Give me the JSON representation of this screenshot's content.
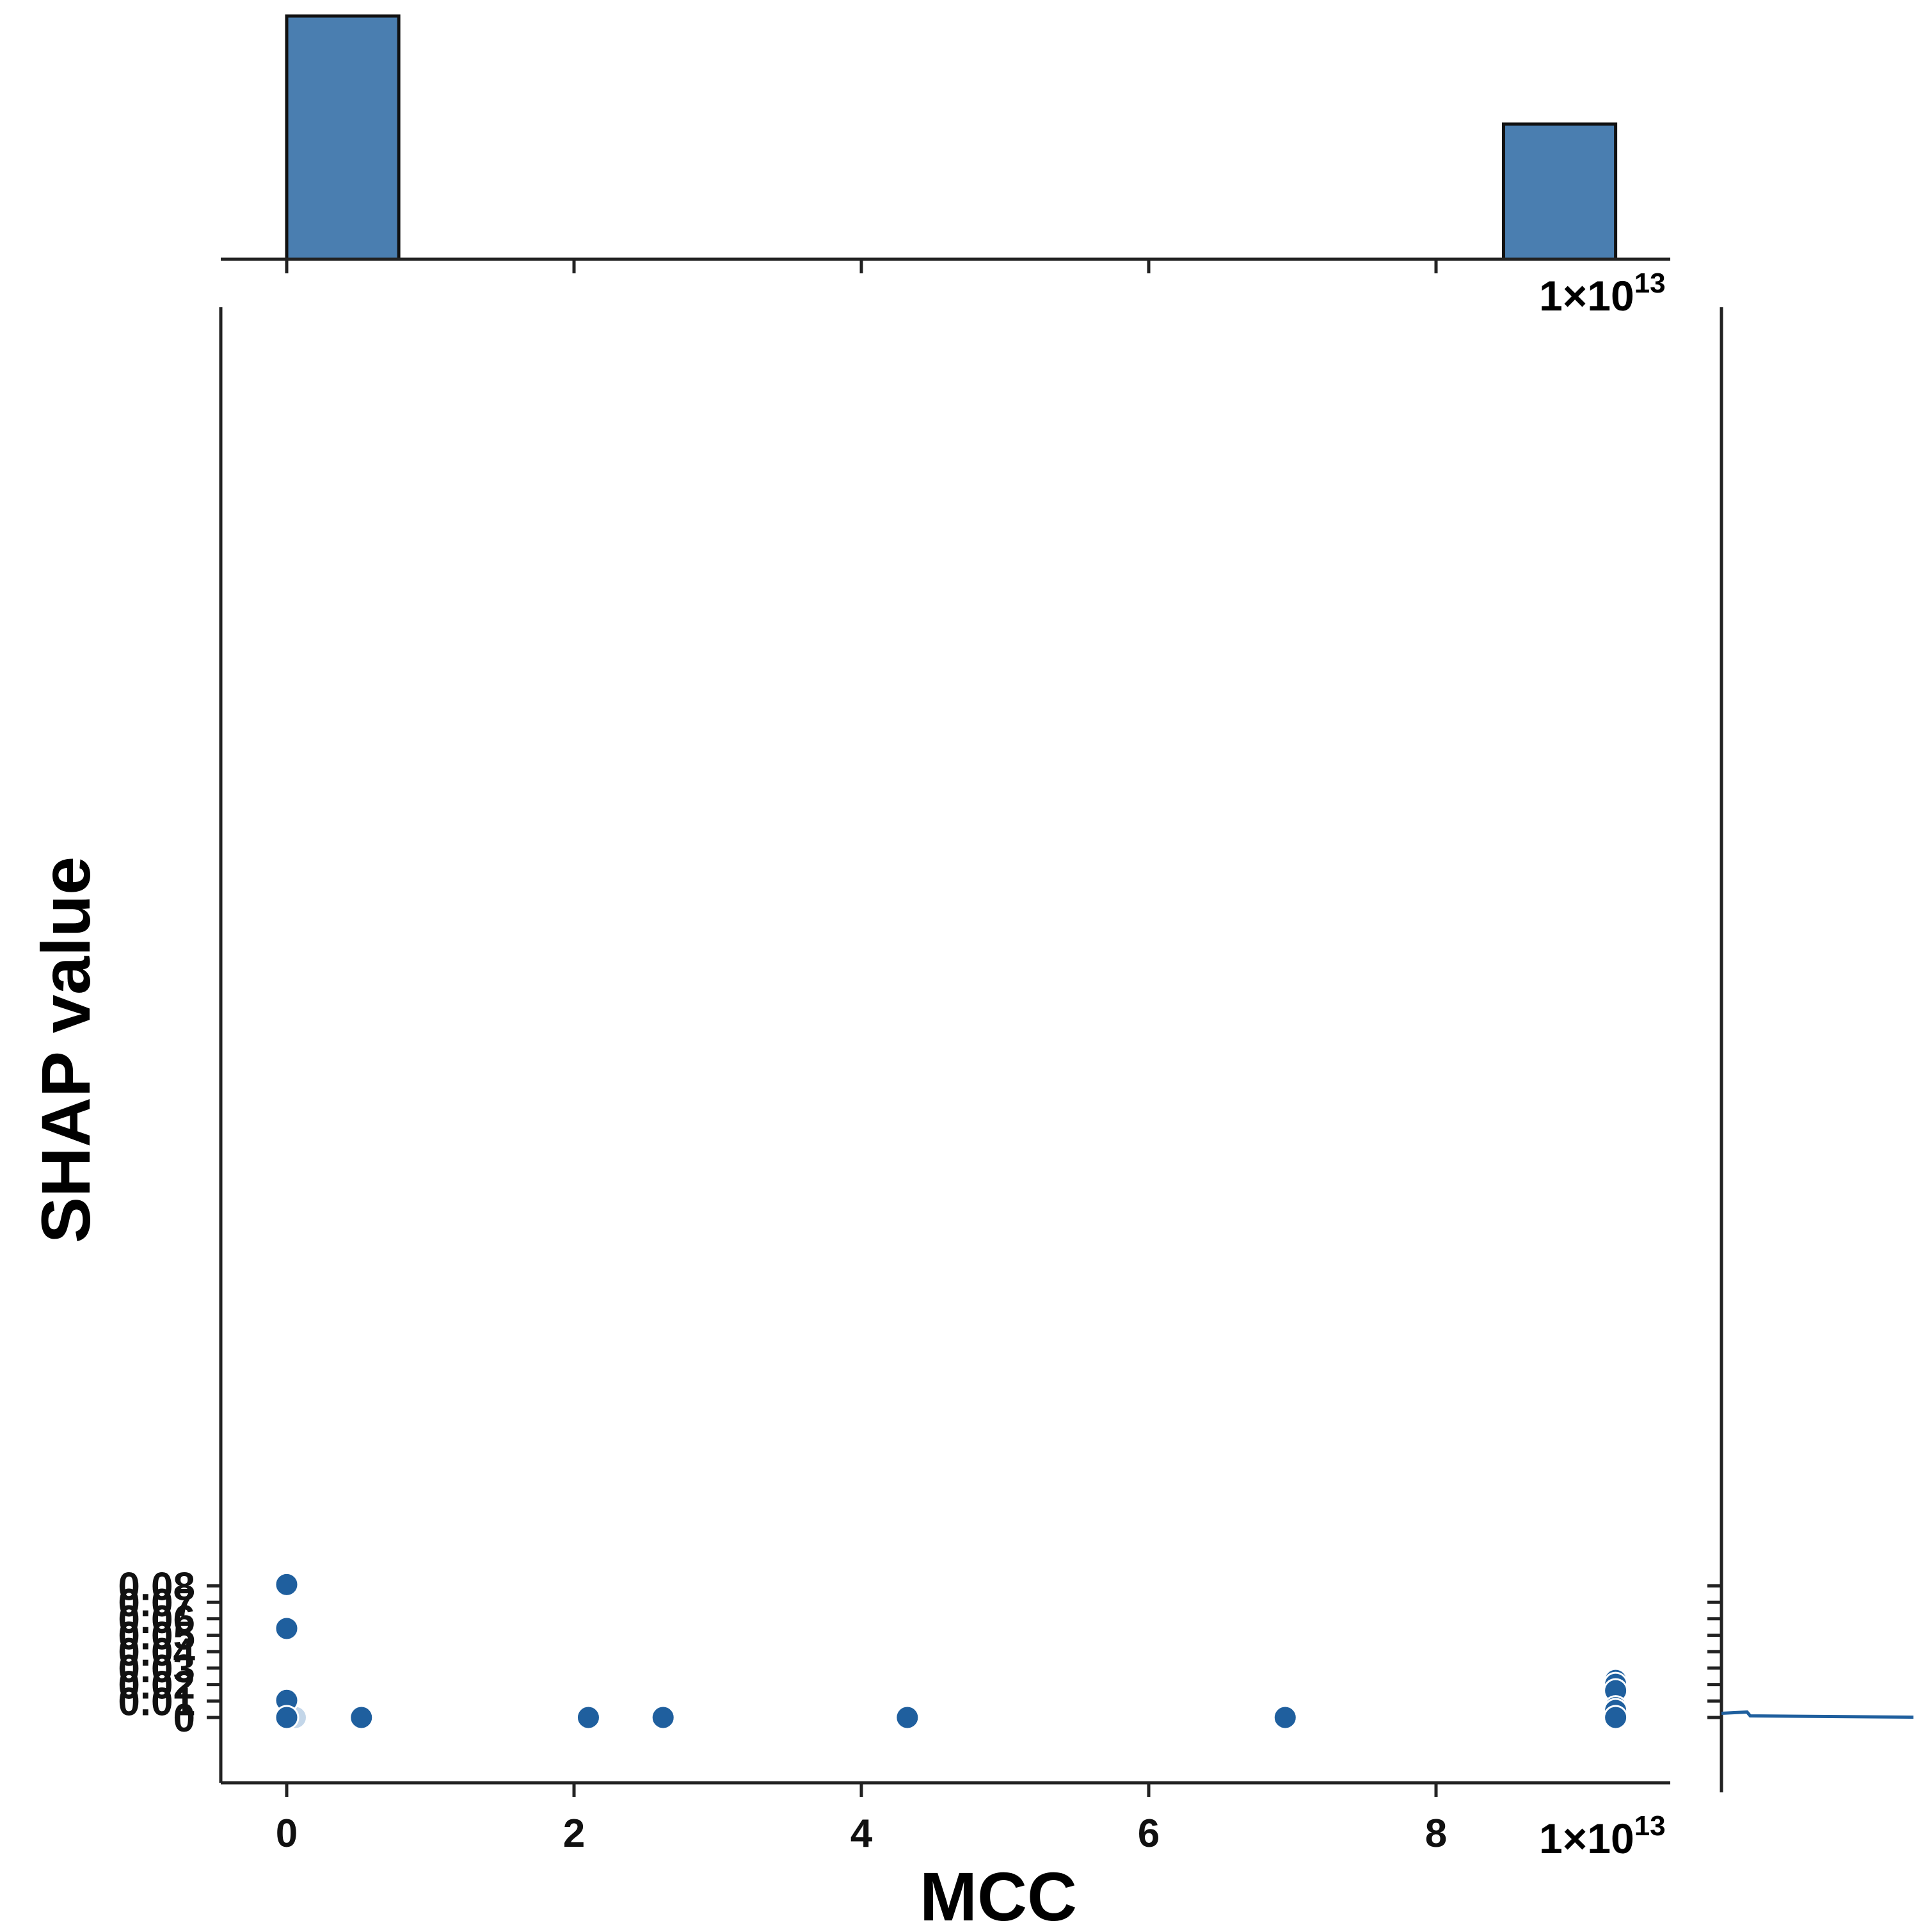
{
  "chart_data": {
    "type": "scatter",
    "title": "",
    "xlabel": "MCC",
    "ylabel": "SHAP value",
    "x_offset_label": {
      "base": "1×10",
      "exp": "13"
    },
    "x_ticks": [
      "0",
      "2",
      "4",
      "6",
      "8"
    ],
    "y_ticks": [
      "0",
      "0.01",
      "0.02",
      "0.03",
      "0.04",
      "0.05",
      "0.06",
      "0.07",
      "0.08"
    ],
    "xlim": [
      -0.45,
      9.7
    ],
    "ylim": [
      -0.004,
      0.085
    ],
    "grid": false,
    "legend": "none",
    "colors": {
      "points": "#1f5f9e",
      "faint_points": "#b9cfe6",
      "hist_fill": "#4a7eb0",
      "hist_edge": "#111111",
      "axis": "#222222"
    },
    "points": [
      {
        "x": 0.0,
        "y": 0.0808
      },
      {
        "x": 0.0,
        "y": 0.0541
      },
      {
        "x": 0.0,
        "y": 0.0104
      },
      {
        "x": 0.0,
        "y": 0.0055,
        "faint": true
      },
      {
        "x": 0.0,
        "y": 0.0048,
        "faint": true
      },
      {
        "x": 0.0,
        "y": 0.0041,
        "faint": true
      },
      {
        "x": 0.0,
        "y": 0.0034,
        "faint": true
      },
      {
        "x": 0.0,
        "y": 0.0027,
        "faint": true
      },
      {
        "x": 0.0,
        "y": 0.002,
        "faint": true
      },
      {
        "x": 0.0,
        "y": 0.0013,
        "faint": true
      },
      {
        "x": 0.0,
        "y": 0.0006,
        "faint": true
      },
      {
        "x": 0.06,
        "y": 0.0,
        "faint": true
      },
      {
        "x": 0.0,
        "y": 0.0
      },
      {
        "x": 0.52,
        "y": 0.0
      },
      {
        "x": 2.1,
        "y": 0.0
      },
      {
        "x": 2.62,
        "y": 0.0
      },
      {
        "x": 4.32,
        "y": 0.0
      },
      {
        "x": 6.95,
        "y": 0.0
      },
      {
        "x": 9.25,
        "y": 0.0225
      },
      {
        "x": 9.25,
        "y": 0.0202
      },
      {
        "x": 9.25,
        "y": 0.0163
      },
      {
        "x": 9.25,
        "y": 0.006
      },
      {
        "x": 9.25,
        "y": 0.0043
      },
      {
        "x": 9.25,
        "y": 0.003,
        "faint": true
      },
      {
        "x": 9.25,
        "y": 0.0018,
        "faint": true
      },
      {
        "x": 9.25,
        "y": 0.0008,
        "faint": true
      },
      {
        "x": 9.25,
        "y": 0.0
      }
    ],
    "x_histogram": {
      "bins": [
        {
          "x0": 0.0,
          "x1": 0.78,
          "count": 27
        },
        {
          "x0": 8.47,
          "x1": 9.25,
          "count": 15
        }
      ]
    },
    "y_marginal": {
      "note_level": 0.0002
    }
  }
}
